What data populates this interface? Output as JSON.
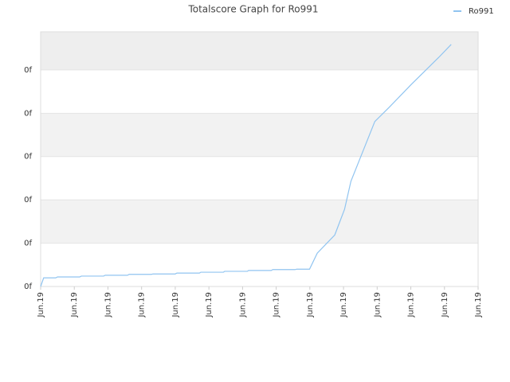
{
  "chart_data": {
    "type": "line",
    "title": "Totalscore Graph for Ro991",
    "x": [
      0,
      0.09,
      0.45,
      0.5,
      1.16,
      1.21,
      1.87,
      1.92,
      2.58,
      2.63,
      3.29,
      3.34,
      4.0,
      4.05,
      4.72,
      4.76,
      5.43,
      5.47,
      6.14,
      6.18,
      6.85,
      6.9,
      7.56,
      7.61,
      7.99,
      8.22,
      8.74,
      9.03,
      9.22,
      9.93,
      10.36,
      11.02,
      11.83,
      12.2
    ],
    "series": [
      {
        "name": "Ro991",
        "color": "#90c4f0",
        "values": [
          0,
          0.2,
          0.2,
          0.22,
          0.22,
          0.24,
          0.24,
          0.26,
          0.26,
          0.28,
          0.28,
          0.29,
          0.29,
          0.31,
          0.31,
          0.33,
          0.33,
          0.35,
          0.35,
          0.37,
          0.37,
          0.39,
          0.39,
          0.4,
          0.4,
          0.77,
          1.19,
          1.78,
          2.43,
          3.81,
          4.14,
          4.67,
          5.29,
          5.59
        ]
      }
    ],
    "xlim": [
      0,
      13
    ],
    "xticks": [
      {
        "value": 0,
        "label": "Jun.19"
      },
      {
        "value": 1,
        "label": "Jun.19"
      },
      {
        "value": 2,
        "label": "Jun.19"
      },
      {
        "value": 3,
        "label": "Jun.19"
      },
      {
        "value": 4,
        "label": "Jun.19"
      },
      {
        "value": 5,
        "label": "Jun.19"
      },
      {
        "value": 6,
        "label": "Jun.19"
      },
      {
        "value": 7,
        "label": "Jun.19"
      },
      {
        "value": 8,
        "label": "Jun.19"
      },
      {
        "value": 9,
        "label": "Jun.19"
      },
      {
        "value": 10,
        "label": "Jun.19"
      },
      {
        "value": 11,
        "label": "Jun.19"
      },
      {
        "value": 12,
        "label": "Jun.19"
      },
      {
        "value": 13,
        "label": "Jun.19"
      }
    ],
    "ylim": [
      0,
      5.88
    ],
    "yticks": [
      {
        "value": 0,
        "label": "0f"
      },
      {
        "value": 1,
        "label": "0f"
      },
      {
        "value": 2,
        "label": "0f"
      },
      {
        "value": 3,
        "label": "0f"
      },
      {
        "value": 4,
        "label": "0f"
      },
      {
        "value": 5,
        "label": "0f"
      }
    ],
    "grid": true,
    "legend": "top-right"
  }
}
